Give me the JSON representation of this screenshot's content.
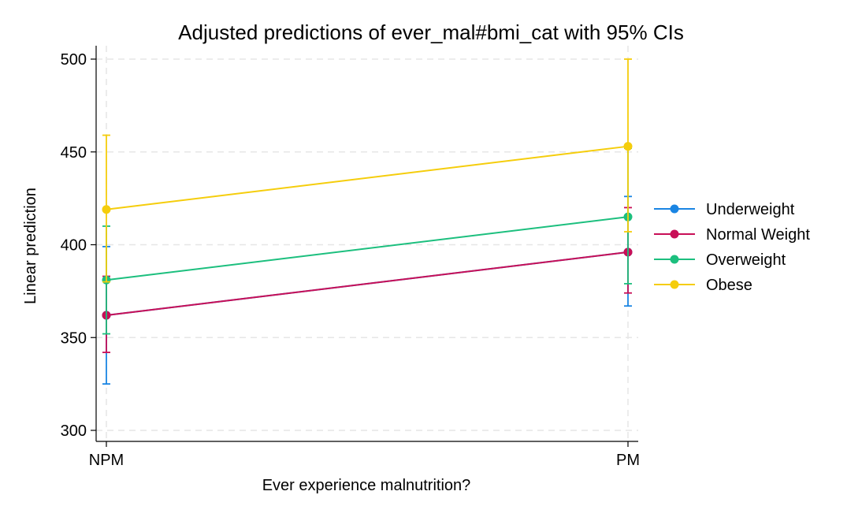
{
  "chart_data": {
    "type": "line",
    "title": "Adjusted predictions of ever_mal#bmi_cat with 95% CIs",
    "xlabel": "Ever experience malnutrition?",
    "ylabel": "Linear prediction",
    "categories": [
      "NPM",
      "PM"
    ],
    "ylim": [
      300,
      500
    ],
    "yticks": [
      300,
      350,
      400,
      450,
      500
    ],
    "grid": true,
    "legend_position": "right",
    "series": [
      {
        "name": "Underweight",
        "color": "#1a85e3",
        "values": [
          362,
          396
        ],
        "lower": [
          325,
          367
        ],
        "upper": [
          399,
          426
        ]
      },
      {
        "name": "Normal Weight",
        "color": "#c80f57",
        "values": [
          362,
          396
        ],
        "lower": [
          342,
          374
        ],
        "upper": [
          383,
          420
        ]
      },
      {
        "name": "Overweight",
        "color": "#1cbf7e",
        "values": [
          381,
          415
        ],
        "lower": [
          352,
          379
        ],
        "upper": [
          410,
          452
        ]
      },
      {
        "name": "Obese",
        "color": "#f5cd0c",
        "values": [
          419,
          453
        ],
        "lower": [
          380,
          407
        ],
        "upper": [
          459,
          500
        ]
      }
    ]
  }
}
